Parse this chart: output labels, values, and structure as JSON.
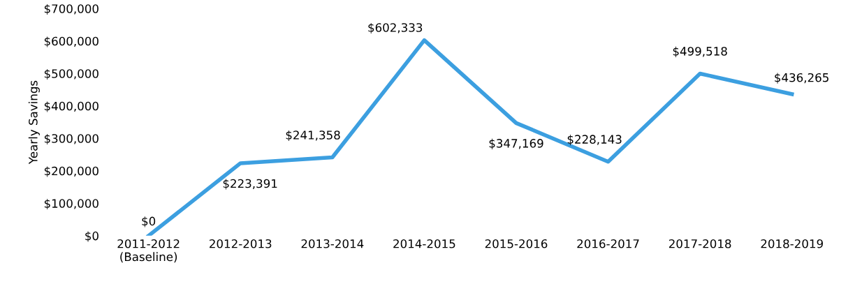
{
  "chart_data": {
    "type": "line",
    "ylabel": "Yearly Savings",
    "categories": [
      "2011-2012\n(Baseline)",
      "2012-2013",
      "2013-2014",
      "2014-2015",
      "2015-2016",
      "2016-2017",
      "2017-2018",
      "2018-2019"
    ],
    "series": [
      {
        "color": "#3c9fe0",
        "values": [
          0,
          223391,
          241358,
          602333,
          347169,
          228143,
          499518,
          436265
        ],
        "value_labels": [
          "$0",
          "$223,391",
          "$241,358",
          "$602,333",
          "$347,169",
          "$228,143",
          "$499,518",
          "$436,265"
        ]
      }
    ],
    "ylim": [
      0,
      700000
    ],
    "yticks": [
      {
        "value": 0,
        "label": "$0"
      },
      {
        "value": 100000,
        "label": "$100,000"
      },
      {
        "value": 200000,
        "label": "$200,000"
      },
      {
        "value": 300000,
        "label": "$300,000"
      },
      {
        "value": 400000,
        "label": "$400,000"
      },
      {
        "value": 500000,
        "label": "$500,000"
      },
      {
        "value": 600000,
        "label": "$600,000"
      },
      {
        "value": 700000,
        "label": "$700,000"
      }
    ],
    "grid": false,
    "marker": "none",
    "line_style": "solid"
  }
}
